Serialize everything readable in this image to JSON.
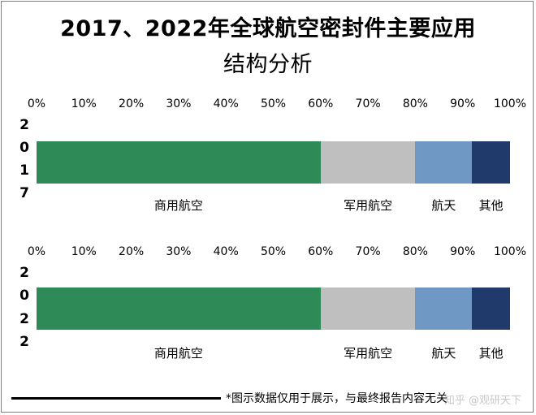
{
  "title_line1": "2017、2022年全球航空密封件主要应用",
  "title_line2": "结构分析",
  "axis_ticks": [
    "0%",
    "10%",
    "20%",
    "30%",
    "40%",
    "50%",
    "60%",
    "70%",
    "80%",
    "90%",
    "100%"
  ],
  "colors": {
    "商用航空": "#2e8b57",
    "军用航空": "#bfbfbf",
    "航天": "#7098c4",
    "其他": "#1f3a6b"
  },
  "chart_data": [
    {
      "type": "bar",
      "orientation": "horizontal-stacked",
      "category": "2017",
      "category_glyphs": [
        "2",
        "0",
        "1",
        "7"
      ],
      "xlim": [
        0,
        100
      ],
      "x_unit": "%",
      "series": [
        {
          "name": "商用航空",
          "value": 60
        },
        {
          "name": "军用航空",
          "value": 20
        },
        {
          "name": "航天",
          "value": 12
        },
        {
          "name": "其他",
          "value": 8
        }
      ]
    },
    {
      "type": "bar",
      "orientation": "horizontal-stacked",
      "category": "2022",
      "category_glyphs": [
        "2",
        "0",
        "2",
        "2"
      ],
      "xlim": [
        0,
        100
      ],
      "x_unit": "%",
      "series": [
        {
          "name": "商用航空",
          "value": 60
        },
        {
          "name": "军用航空",
          "value": 20
        },
        {
          "name": "航天",
          "value": 12
        },
        {
          "name": "其他",
          "value": 8
        }
      ]
    }
  ],
  "footer_note": "*图示数据仅用于展示，与最终报告内容无关",
  "watermark": "知乎 @观研天下"
}
